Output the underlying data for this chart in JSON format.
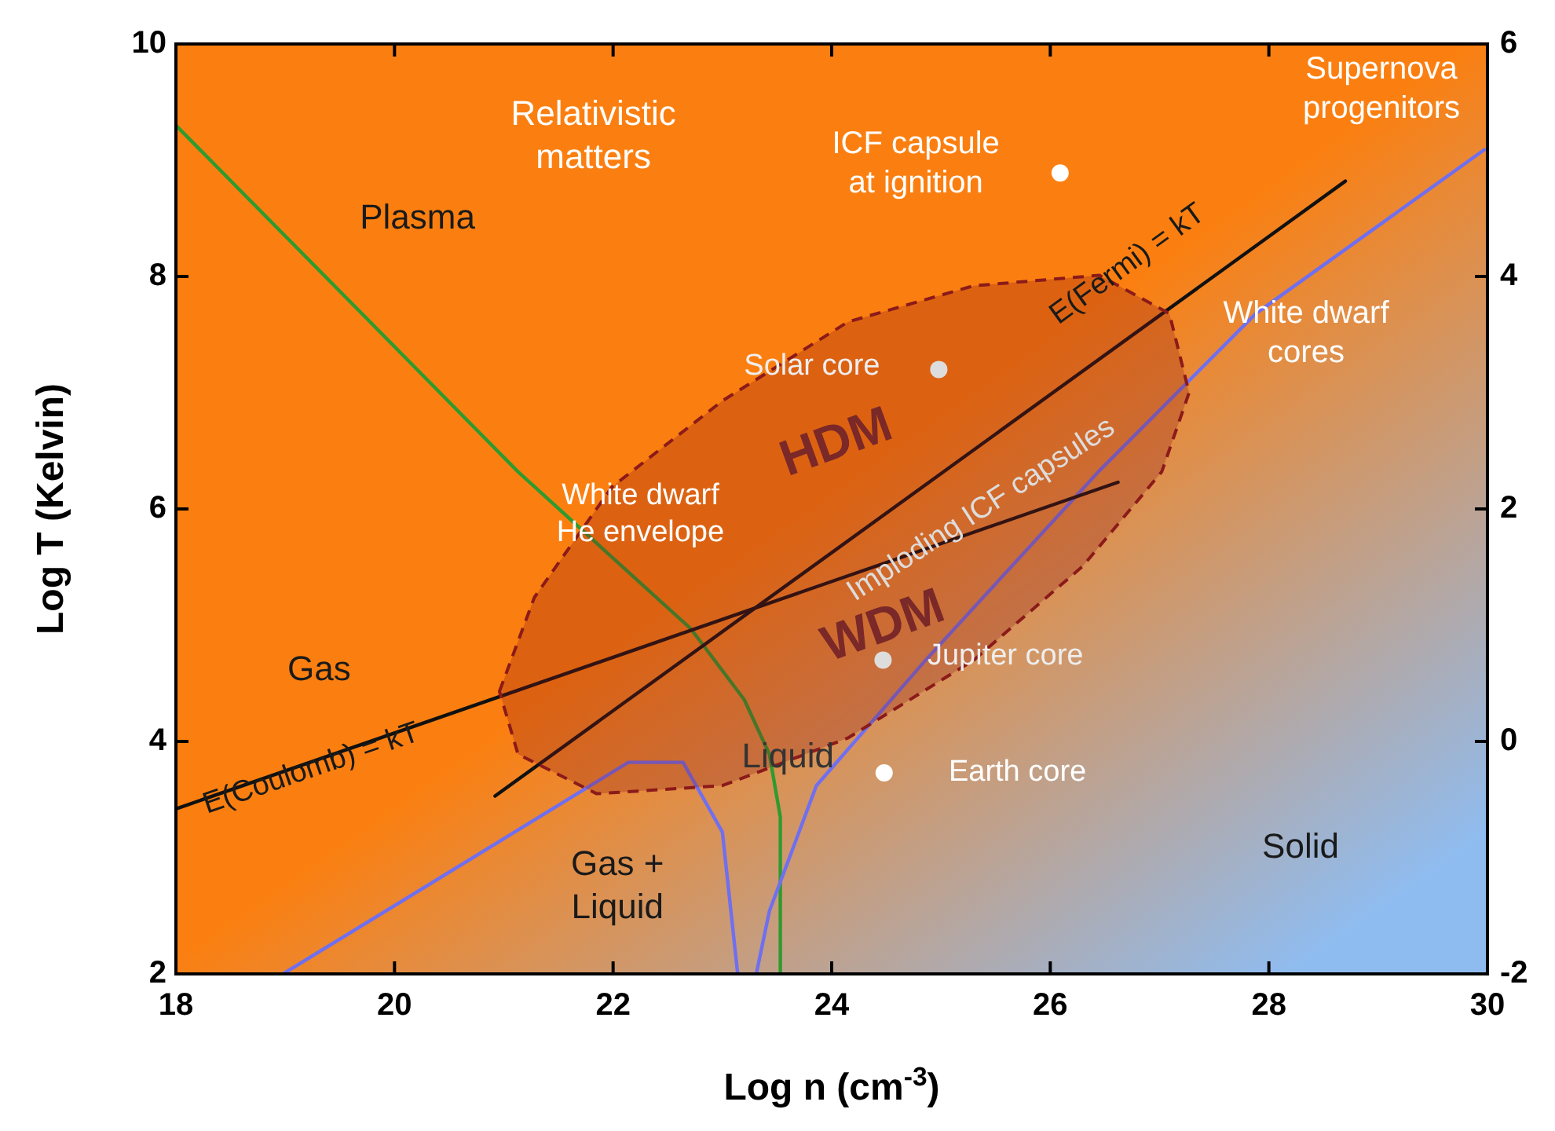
{
  "chart_data": {
    "type": "line",
    "xlabel": "Log n (cm$^{-3}$)",
    "ylabel": "Log T (Kelvin)",
    "xlim": [
      18,
      30
    ],
    "xticks": [
      18,
      20,
      22,
      24,
      26,
      28,
      30
    ],
    "ylim": [
      2,
      10
    ],
    "yticks": [
      2,
      4,
      6,
      8,
      10
    ],
    "y2lim": [
      -2,
      6
    ],
    "y2ticks": [
      -2,
      0,
      2,
      4,
      6
    ],
    "series": [
      {
        "color": "#2f9a2f",
        "x": [
          18,
          21.13,
          22.71,
          23.2,
          23.43,
          23.53,
          23.53
        ],
        "values": [
          9.3,
          6.32,
          4.97,
          4.36,
          3.89,
          3.35,
          2.0
        ]
      },
      {
        "color": "#6f6ff0",
        "x": [
          18.98,
          22.14,
          22.64,
          23.0,
          23.14
        ],
        "values": [
          2.0,
          3.82,
          3.82,
          3.22,
          2.0
        ]
      },
      {
        "color": "#6f6ff0",
        "x": [
          23.31,
          23.43,
          23.86,
          24.86,
          26.44,
          27.88,
          29.97
        ],
        "values": [
          2.0,
          2.54,
          3.62,
          4.7,
          6.32,
          7.68,
          9.09
        ]
      },
      {
        "color": "#111111",
        "x": [
          18,
          26.62
        ],
        "values": [
          3.42,
          6.23
        ]
      },
      {
        "color": "#111111",
        "x": [
          20.92,
          28.7
        ],
        "values": [
          3.53,
          8.82
        ]
      },
      {
        "type": "area",
        "color": "#8b1a1a",
        "line_style": "dashed",
        "x": [
          20.96,
          21.28,
          21.99,
          23.0,
          24.15,
          25.3,
          26.45,
          27.09,
          27.27,
          27.02,
          26.3,
          25.3,
          24.15,
          23.0,
          21.85,
          21.13,
          20.96
        ],
        "values": [
          4.43,
          5.24,
          6.19,
          6.93,
          7.61,
          7.92,
          8.01,
          7.68,
          7.0,
          6.32,
          5.51,
          4.7,
          4.03,
          3.62,
          3.55,
          3.89,
          4.43
        ]
      },
      {
        "type": "scatter",
        "marker": "circle",
        "colors": [
          "#ffffff",
          "#dddddd",
          "#dddddd",
          "#ffffff"
        ],
        "x": [
          26.09,
          24.98,
          24.47,
          24.48
        ],
        "values": [
          8.89,
          7.2,
          4.7,
          3.73
        ]
      }
    ],
    "annotations": [
      "Relativistic\nmatters",
      "Plasma",
      "Supernova\nprogenitors",
      "ICF capsule\nat ignition",
      "Solar core",
      "White dwarf\ncores",
      "E(Fermi) = kT",
      "HDM",
      "WDM",
      "Imploding ICF capsules",
      "White dwarf\nHe envelope",
      "Gas",
      "E(Coulomb) = kT",
      "Liquid",
      "Jupiter core",
      "Earth core",
      "Gas +\nLiquid",
      "Solid"
    ]
  }
}
